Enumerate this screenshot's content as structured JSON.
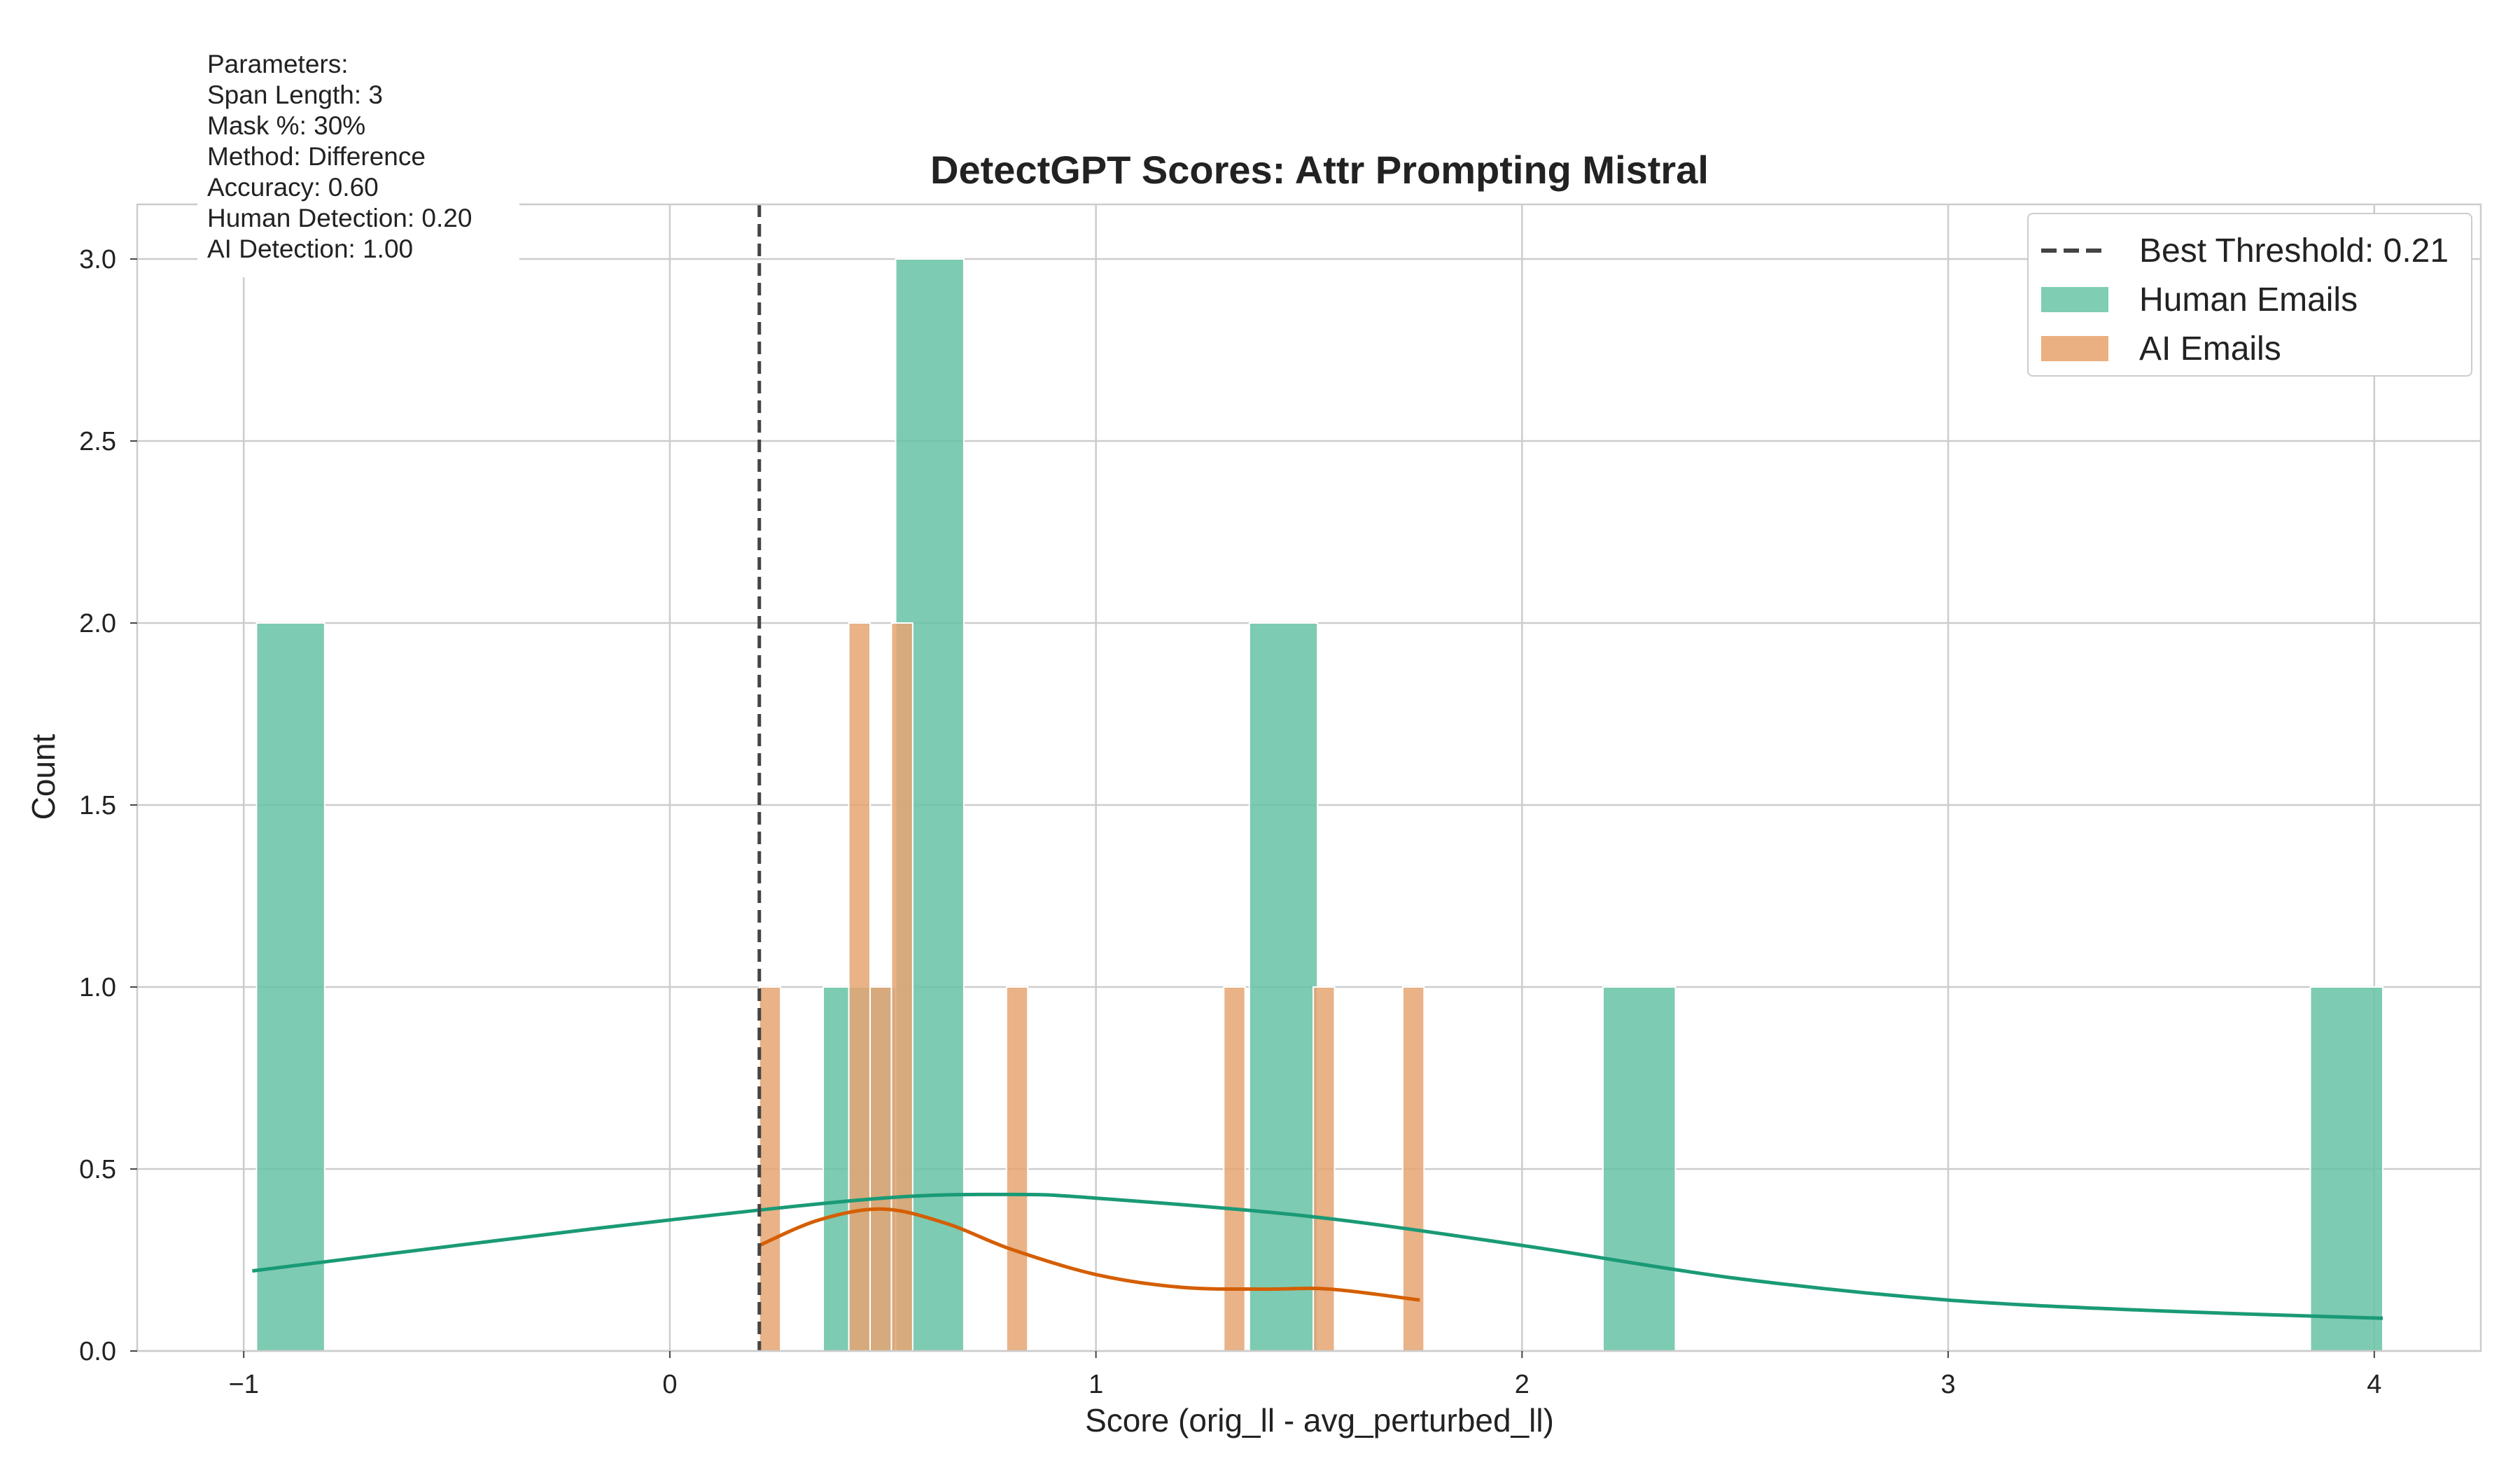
{
  "chart_data": {
    "type": "histogram",
    "title": "DetectGPT Scores: Attr Prompting Mistral",
    "xlabel": "Score (orig_ll - avg_perturbed_ll)",
    "ylabel": "Count",
    "xlim": [
      -1.25,
      4.25
    ],
    "ylim": [
      0,
      3.15
    ],
    "xticks": [
      -1,
      0,
      1,
      2,
      3,
      4
    ],
    "xtick_labels": [
      "−1",
      "0",
      "1",
      "2",
      "3",
      "4"
    ],
    "yticks": [
      0.0,
      0.5,
      1.0,
      1.5,
      2.0,
      2.5,
      3.0
    ],
    "ytick_labels": [
      "0.0",
      "0.5",
      "1.0",
      "1.5",
      "2.0",
      "2.5",
      "3.0"
    ],
    "grid": true,
    "legend_position": "top-right",
    "threshold": {
      "x": 0.21,
      "label": "Best Threshold: 0.21",
      "color": "#444444"
    },
    "series": [
      {
        "name": "Human Emails",
        "color": "#66c2a5",
        "line_color": "#1a9a76",
        "bins": [
          {
            "x0": -0.97,
            "x1": -0.81,
            "count": 2
          },
          {
            "x0": 0.36,
            "x1": 0.53,
            "count": 1
          },
          {
            "x0": 0.53,
            "x1": 0.69,
            "count": 3
          },
          {
            "x0": 1.36,
            "x1": 1.52,
            "count": 2
          },
          {
            "x0": 2.19,
            "x1": 2.36,
            "count": 1
          },
          {
            "x0": 3.85,
            "x1": 4.02,
            "count": 1
          }
        ],
        "kde": [
          [
            -0.98,
            0.22
          ],
          [
            -0.5,
            0.29
          ],
          [
            0.0,
            0.36
          ],
          [
            0.5,
            0.42
          ],
          [
            0.8,
            0.43
          ],
          [
            1.0,
            0.42
          ],
          [
            1.5,
            0.37
          ],
          [
            2.0,
            0.29
          ],
          [
            2.5,
            0.2
          ],
          [
            3.0,
            0.14
          ],
          [
            3.5,
            0.11
          ],
          [
            4.02,
            0.09
          ]
        ]
      },
      {
        "name": "AI Emails",
        "color": "#e5a472",
        "line_color": "#d55e00",
        "bins": [
          {
            "x0": 0.21,
            "x1": 0.26,
            "count": 1
          },
          {
            "x0": 0.42,
            "x1": 0.47,
            "count": 2
          },
          {
            "x0": 0.47,
            "x1": 0.52,
            "count": 1
          },
          {
            "x0": 0.52,
            "x1": 0.57,
            "count": 2
          },
          {
            "x0": 0.79,
            "x1": 0.84,
            "count": 1
          },
          {
            "x0": 1.3,
            "x1": 1.35,
            "count": 1
          },
          {
            "x0": 1.51,
            "x1": 1.56,
            "count": 1
          },
          {
            "x0": 1.72,
            "x1": 1.77,
            "count": 1
          }
        ],
        "kde": [
          [
            0.21,
            0.29
          ],
          [
            0.35,
            0.36
          ],
          [
            0.5,
            0.39
          ],
          [
            0.65,
            0.35
          ],
          [
            0.8,
            0.28
          ],
          [
            1.0,
            0.21
          ],
          [
            1.2,
            0.175
          ],
          [
            1.4,
            0.17
          ],
          [
            1.55,
            0.17
          ],
          [
            1.76,
            0.14
          ]
        ]
      }
    ]
  },
  "parameters_box": {
    "lines": [
      "Parameters:",
      "Span Length: 3",
      "Mask %: 30%",
      "Method: Difference",
      "Accuracy: 0.60",
      "Human Detection: 0.20",
      "AI Detection: 1.00"
    ]
  },
  "legend": {
    "threshold_label": "Best Threshold: 0.21",
    "human_label": "Human Emails",
    "ai_label": "AI Emails"
  }
}
